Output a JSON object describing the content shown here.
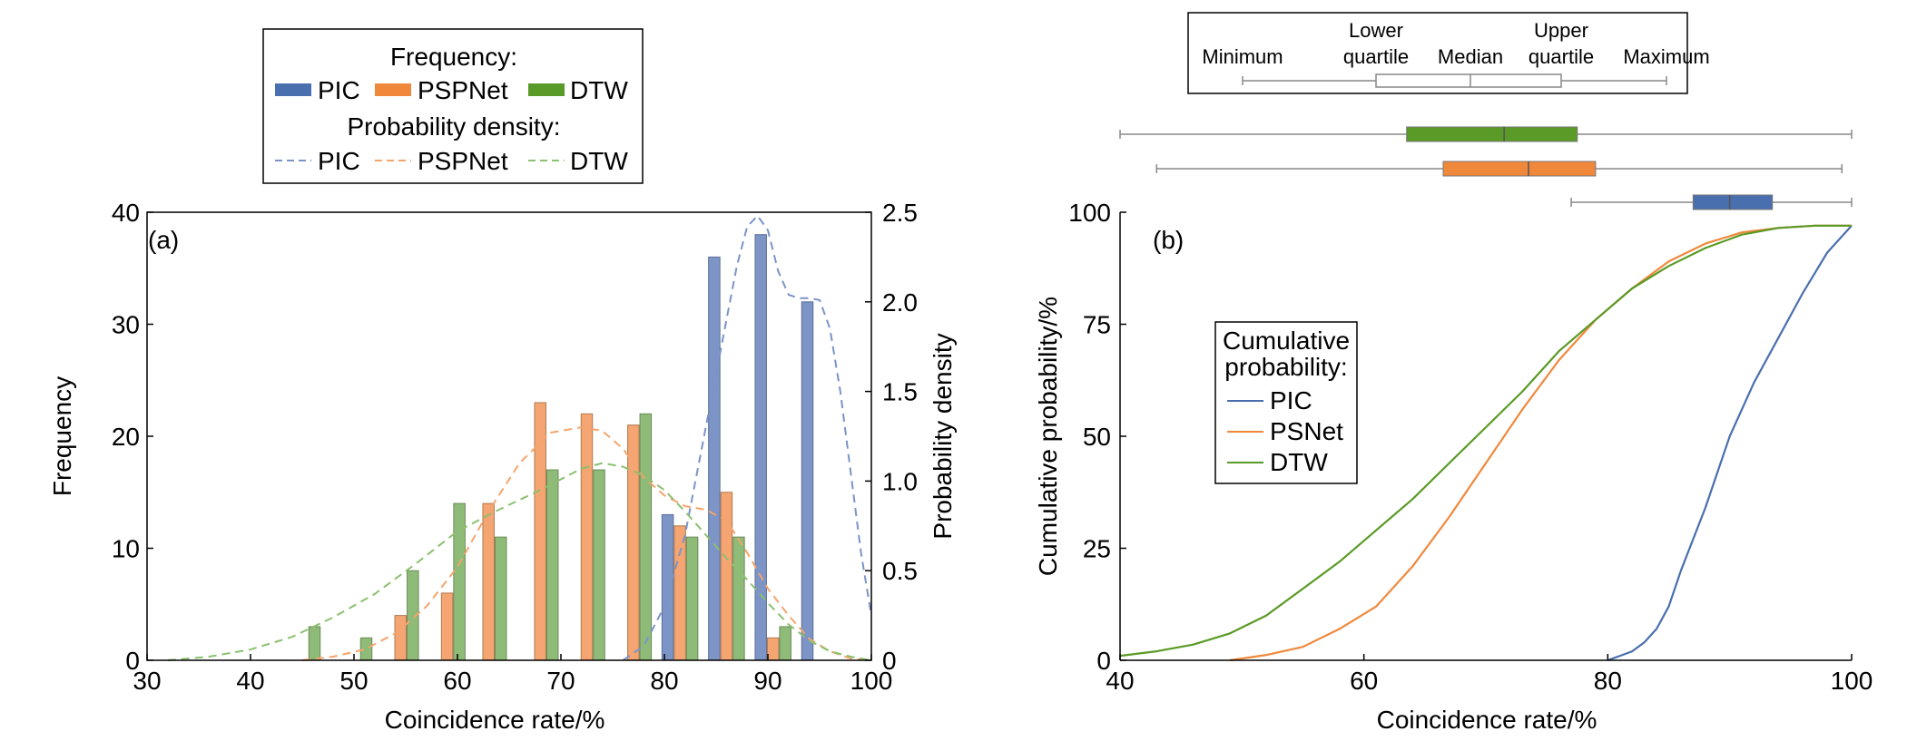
{
  "legend_a": {
    "freq_title": "Frequency:",
    "density_title": "Probability density:",
    "items": [
      "PIC",
      "PSPNet",
      "DTW"
    ]
  },
  "colors": {
    "PIC": "#4a6fae",
    "PSPNet": "#f0883c",
    "DTW": "#5a9a26"
  },
  "chart_data": [
    {
      "type": "bar",
      "panel_label": "(a)",
      "xlabel": "Coincidence rate/%",
      "ylabel": "Frequency",
      "y2label": "Probability density",
      "xlim": [
        30,
        100
      ],
      "ylim": [
        0,
        40
      ],
      "y2lim": [
        0,
        2.5
      ],
      "xticks": [
        30,
        40,
        50,
        60,
        70,
        80,
        90,
        100
      ],
      "yticks": [
        0,
        10,
        20,
        30,
        40
      ],
      "y2ticks": [
        "0",
        "0.5",
        "1.0",
        "1.5",
        "2.0",
        "2.5"
      ],
      "bin_centers": [
        45,
        50,
        54.5,
        59,
        63,
        68,
        72.5,
        77,
        81.5,
        86,
        90.5,
        95
      ],
      "series": [
        {
          "name": "PIC",
          "values": [
            0,
            0,
            0,
            0,
            0,
            0,
            0,
            0,
            13,
            36,
            38,
            32
          ]
        },
        {
          "name": "PSPNet",
          "values": [
            0,
            0,
            4,
            6,
            14,
            23,
            22,
            21,
            12,
            15,
            2,
            0
          ]
        },
        {
          "name": "DTW",
          "values": [
            3,
            2,
            8,
            14,
            11,
            17,
            17,
            22,
            11,
            11,
            3,
            0
          ]
        }
      ],
      "density": [
        {
          "name": "PIC",
          "x": [
            76,
            78,
            80,
            82,
            84,
            86,
            87,
            88,
            89,
            90,
            91,
            92,
            93,
            94,
            95,
            96,
            97,
            98,
            99,
            100
          ],
          "y": [
            0,
            0.08,
            0.3,
            0.7,
            1.3,
            1.9,
            2.2,
            2.42,
            2.48,
            2.4,
            2.17,
            2.04,
            2.02,
            2.02,
            2.01,
            1.85,
            1.5,
            1.05,
            0.6,
            0.25
          ]
        },
        {
          "name": "PSPNet",
          "x": [
            45,
            48,
            51,
            54,
            57,
            60,
            63,
            66,
            69,
            72,
            74,
            76,
            78,
            80,
            82,
            84,
            86,
            88,
            90,
            92,
            94,
            96,
            98,
            100
          ],
          "y": [
            0,
            0.02,
            0.06,
            0.15,
            0.3,
            0.52,
            0.83,
            1.1,
            1.27,
            1.3,
            1.28,
            1.18,
            1.02,
            0.92,
            0.86,
            0.84,
            0.78,
            0.6,
            0.4,
            0.25,
            0.12,
            0.05,
            0.01,
            0
          ]
        },
        {
          "name": "DTW",
          "x": [
            32,
            36,
            40,
            44,
            48,
            52,
            56,
            60,
            64,
            68,
            72,
            74,
            76,
            78,
            80,
            82,
            84,
            86,
            88,
            90,
            92,
            94,
            96,
            98,
            100
          ],
          "y": [
            0,
            0.02,
            0.06,
            0.13,
            0.24,
            0.37,
            0.54,
            0.72,
            0.84,
            0.95,
            1.07,
            1.1,
            1.08,
            1.03,
            0.95,
            0.83,
            0.7,
            0.57,
            0.45,
            0.32,
            0.2,
            0.11,
            0.05,
            0.02,
            0
          ]
        }
      ]
    },
    {
      "type": "line",
      "panel_label": "(b)",
      "xlabel": "Coincidence rate/%",
      "ylabel": "Cumulative probability/%",
      "xlim": [
        40,
        100
      ],
      "ylim": [
        0,
        100
      ],
      "xticks": [
        40,
        60,
        80,
        100
      ],
      "yticks": [
        0,
        25,
        50,
        75,
        100
      ],
      "legend": {
        "title": "Cumulative probability:",
        "title_lines": [
          "Cumulative",
          "probability:"
        ],
        "items": [
          "PIC",
          "PSNet",
          "DTW"
        ]
      },
      "series": [
        {
          "name": "PIC",
          "x": [
            80,
            81,
            82,
            83,
            84,
            85,
            86,
            88,
            90,
            92,
            94,
            96,
            98,
            100
          ],
          "y": [
            0,
            1,
            2,
            4,
            7,
            12,
            20,
            34,
            50,
            62,
            72,
            82,
            91,
            97
          ]
        },
        {
          "name": "PSNet",
          "x": [
            49,
            52,
            55,
            58,
            61,
            64,
            67,
            70,
            73,
            76,
            79,
            82,
            85,
            88,
            91,
            94,
            97,
            100
          ],
          "y": [
            0,
            1.2,
            3,
            7,
            12,
            21,
            32,
            44,
            56,
            67,
            76,
            83,
            89,
            93,
            95.5,
            96.5,
            97,
            97
          ]
        },
        {
          "name": "DTW",
          "x": [
            40,
            43,
            46,
            49,
            52,
            55,
            58,
            61,
            64,
            67,
            70,
            73,
            76,
            79,
            82,
            85,
            88,
            91,
            94,
            97,
            100
          ],
          "y": [
            1,
            2,
            3.5,
            6,
            10,
            16,
            22,
            29,
            36,
            44,
            52,
            60,
            69,
            76,
            83,
            88,
            92,
            95,
            96.5,
            97,
            97
          ]
        }
      ],
      "boxplot": {
        "legend_labels": {
          "minimum": "Minimum",
          "lower_quartile": [
            "Lower",
            "quartile"
          ],
          "median": "Median",
          "upper_quartile": [
            "Upper",
            "quartile"
          ],
          "maximum": "Maximum"
        },
        "boxes": [
          {
            "name": "DTW",
            "min": 40,
            "q1": 63.5,
            "median": 71.5,
            "q3": 77.5,
            "max": 100
          },
          {
            "name": "PSPNet",
            "min": 43,
            "q1": 66.5,
            "median": 73.5,
            "q3": 79,
            "max": 99.2
          },
          {
            "name": "PIC",
            "min": 77,
            "q1": 87,
            "median": 90,
            "q3": 93.5,
            "max": 100
          }
        ]
      }
    }
  ]
}
